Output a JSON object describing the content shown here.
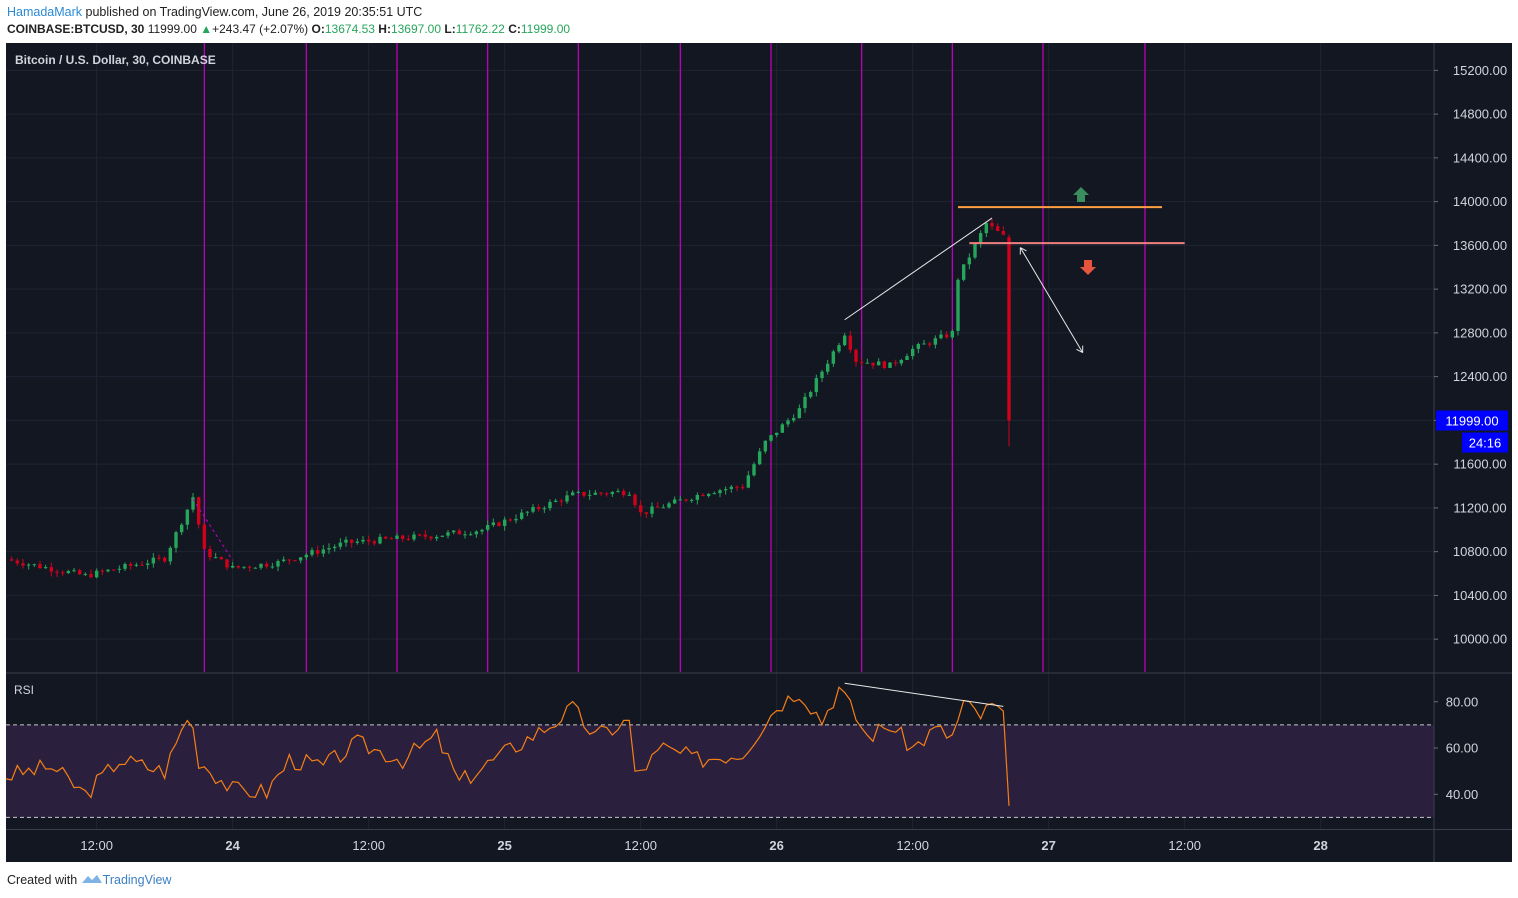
{
  "header": {
    "author": "HamadaMark",
    "published_text": " published on TradingView.com, June 26, 2019 20:35:51 UTC",
    "symbol": "COINBASE:BTCUSD, 30",
    "last": "11999.00",
    "change_arrow": "▲",
    "change": "+243.47 (+2.07%)",
    "o_label": "O:",
    "o_val": "13674.53",
    "h_label": "H:",
    "h_val": "13697.00",
    "l_label": "L:",
    "l_val": "11762.22",
    "c_label": "C:",
    "c_val": "11999.00"
  },
  "footer": {
    "created_with": "Created with",
    "brand": "TradingView"
  },
  "colors": {
    "background": "#131722",
    "up": "#26a65b",
    "down": "#d0021b",
    "rsi_line": "#f57f17",
    "rsi_band": "#2a1f3d",
    "vertical_lines": "#c400c4",
    "resistance_line": "#ff9f43",
    "support_line": "#f08080",
    "price_label_bg": "#0000ff",
    "target_up_arrow": "#3a8d5c",
    "target_down_arrow": "#e7553d"
  },
  "chart_data": {
    "type": "candlestick",
    "title": "Bitcoin / U.S. Dollar, 30, COINBASE",
    "price_axis": {
      "ticks": [
        "15200.00",
        "14800.00",
        "14400.00",
        "14000.00",
        "13600.00",
        "13200.00",
        "12800.00",
        "12400.00",
        "12000.00",
        "11600.00",
        "11200.00",
        "10800.00",
        "10400.00",
        "10000.00"
      ],
      "tick_values": [
        15200,
        14800,
        14400,
        14000,
        13600,
        13200,
        12800,
        12400,
        12000,
        11600,
        11200,
        10800,
        10400,
        10000
      ],
      "range": [
        9700,
        15450
      ],
      "current_price_label": "11999.00",
      "countdown_label": "24:16",
      "current_price": 11999
    },
    "time_axis": {
      "labels": [
        "12:00",
        "24",
        "12:00",
        "25",
        "12:00",
        "26",
        "12:00",
        "27",
        "12:00",
        "28"
      ],
      "label_hours": [
        -12,
        0,
        12,
        24,
        36,
        48,
        60,
        72,
        84,
        96
      ],
      "range_hours": [
        -20,
        106
      ]
    },
    "grid": true,
    "key_points": [
      {
        "t": -20,
        "price": 10730
      },
      {
        "t": -13,
        "price": 10580
      },
      {
        "t": -6,
        "price": 10740
      },
      {
        "t": -3.5,
        "price": 11300
      },
      {
        "t": -2.5,
        "price": 10800
      },
      {
        "t": 0,
        "price": 10650
      },
      {
        "t": 4,
        "price": 10700
      },
      {
        "t": 10,
        "price": 10880
      },
      {
        "t": 18,
        "price": 10950
      },
      {
        "t": 22,
        "price": 11000
      },
      {
        "t": 30,
        "price": 11320
      },
      {
        "t": 35,
        "price": 11350
      },
      {
        "t": 36,
        "price": 11150
      },
      {
        "t": 42,
        "price": 11350
      },
      {
        "t": 45,
        "price": 11400
      },
      {
        "t": 47,
        "price": 11800
      },
      {
        "t": 50,
        "price": 12100
      },
      {
        "t": 54,
        "price": 12800
      },
      {
        "t": 55,
        "price": 12550
      },
      {
        "t": 58,
        "price": 12500
      },
      {
        "t": 60,
        "price": 12650
      },
      {
        "t": 63.5,
        "price": 12800
      },
      {
        "t": 64,
        "price": 13300
      },
      {
        "t": 65,
        "price": 13500
      },
      {
        "t": 66.5,
        "price": 13800
      },
      {
        "t": 68,
        "price": 13680
      }
    ],
    "last_candle": {
      "t": 68.5,
      "open": 13674.53,
      "high": 13697.0,
      "low": 11762.22,
      "close": 11999.0
    },
    "vertical_lines_hours": [
      -2.5,
      6.5,
      14.5,
      22.5,
      30.5,
      39.5,
      47.5,
      55.5,
      63.5,
      71.5,
      80.5
    ],
    "horizontal_levels": [
      {
        "price": 13950,
        "t_start": 64,
        "t_end": 82,
        "color": "#ff9f43"
      },
      {
        "price": 13620,
        "t_start": 65,
        "t_end": 84,
        "color": "#f08080"
      }
    ],
    "trend_line": {
      "t1": 54,
      "p1": 12920,
      "t2": 67,
      "p2": 13850
    },
    "projection_arrow": {
      "t1": 69.5,
      "p1": 13580,
      "t2": 75,
      "p2": 12620
    },
    "rsi": {
      "label": "RSI",
      "ticks": [
        "80.00",
        "60.00",
        "40.00"
      ],
      "tick_values": [
        80,
        60,
        40
      ],
      "range": [
        25,
        92
      ],
      "upper_band": 70,
      "lower_band": 30,
      "key_points": [
        {
          "t": -20,
          "v": 48
        },
        {
          "t": -16,
          "v": 52
        },
        {
          "t": -13,
          "v": 40
        },
        {
          "t": -10,
          "v": 55
        },
        {
          "t": -6,
          "v": 50
        },
        {
          "t": -3.8,
          "v": 76
        },
        {
          "t": -3,
          "v": 55
        },
        {
          "t": 0,
          "v": 42
        },
        {
          "t": 3,
          "v": 41
        },
        {
          "t": 5,
          "v": 55
        },
        {
          "t": 8,
          "v": 52
        },
        {
          "t": 11,
          "v": 62
        },
        {
          "t": 15,
          "v": 55
        },
        {
          "t": 18,
          "v": 65
        },
        {
          "t": 20,
          "v": 45
        },
        {
          "t": 24,
          "v": 58
        },
        {
          "t": 28,
          "v": 70
        },
        {
          "t": 30,
          "v": 77
        },
        {
          "t": 32,
          "v": 65
        },
        {
          "t": 35,
          "v": 72
        },
        {
          "t": 35.5,
          "v": 48
        },
        {
          "t": 38,
          "v": 60
        },
        {
          "t": 41,
          "v": 55
        },
        {
          "t": 45,
          "v": 58
        },
        {
          "t": 48,
          "v": 78
        },
        {
          "t": 50,
          "v": 85
        },
        {
          "t": 52,
          "v": 72
        },
        {
          "t": 53.5,
          "v": 86
        },
        {
          "t": 56,
          "v": 65
        },
        {
          "t": 58,
          "v": 70
        },
        {
          "t": 60,
          "v": 60
        },
        {
          "t": 62,
          "v": 68
        },
        {
          "t": 63.5,
          "v": 65
        },
        {
          "t": 64.5,
          "v": 79
        },
        {
          "t": 66,
          "v": 74
        },
        {
          "t": 67,
          "v": 78
        },
        {
          "t": 68,
          "v": 76
        },
        {
          "t": 68.5,
          "v": 35
        }
      ],
      "divergence_line": {
        "t1": 54,
        "v1": 88,
        "t2": 68,
        "v2": 78
      }
    }
  }
}
